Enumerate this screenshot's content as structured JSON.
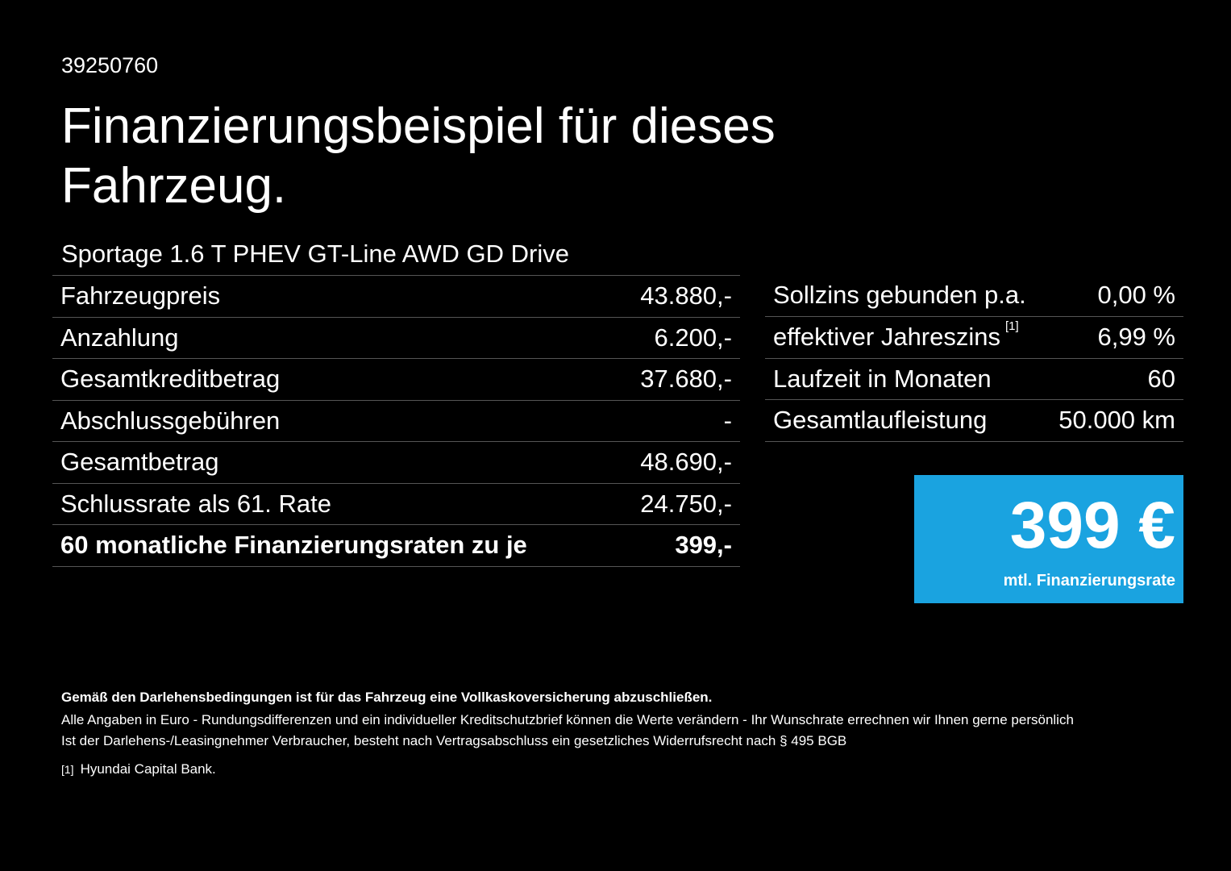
{
  "reference_number": "39250760",
  "title": "Finanzierungsbeispiel für dieses Fahrzeug.",
  "model": "Sportage 1.6 T PHEV GT-Line AWD GD Drive",
  "left_table": [
    {
      "label": "Fahrzeugpreis",
      "value": "43.880,-"
    },
    {
      "label": "Anzahlung",
      "value": "6.200,-"
    },
    {
      "label": "Gesamtkreditbetrag",
      "value": "37.680,-"
    },
    {
      "label": "Abschlussgebühren",
      "value": "-"
    },
    {
      "label": "Gesamtbetrag",
      "value": "48.690,-"
    },
    {
      "label": "Schlussrate als 61. Rate",
      "value": "24.750,-"
    },
    {
      "label": "60 monatliche Finanzierungsraten zu je",
      "value": "399,-"
    }
  ],
  "right_table": [
    {
      "label": "Sollzins gebunden p.a.",
      "value": "0,00 %"
    },
    {
      "label": "effektiver Jahreszins",
      "footnote": "[1]",
      "value": "6,99 %"
    },
    {
      "label": "Laufzeit in Monaten",
      "value": "60"
    },
    {
      "label": "Gesamtlaufleistung",
      "value": "50.000 km"
    }
  ],
  "badge": {
    "amount": "399 €",
    "caption": "mtl. Finanzierungsrate",
    "color": "#1aa3e0"
  },
  "footer": {
    "bold_note": "Gemäß den Darlehensbedingungen ist für das Fahrzeug eine Vollkaskoversicherung abzuschließen.",
    "line1": "Alle Angaben in Euro - Rundungsdifferenzen und ein individueller Kreditschutzbrief können die Werte verändern - Ihr Wunschrate errechnen wir Ihnen gerne persönlich",
    "line2": "Ist der Darlehens-/Leasingnehmer Verbraucher, besteht nach Vertragsabschluss ein gesetzliches Widerrufsrecht nach § 495 BGB",
    "footnote_marker": "[1]",
    "footnote_text": "Hyundai Capital Bank."
  }
}
